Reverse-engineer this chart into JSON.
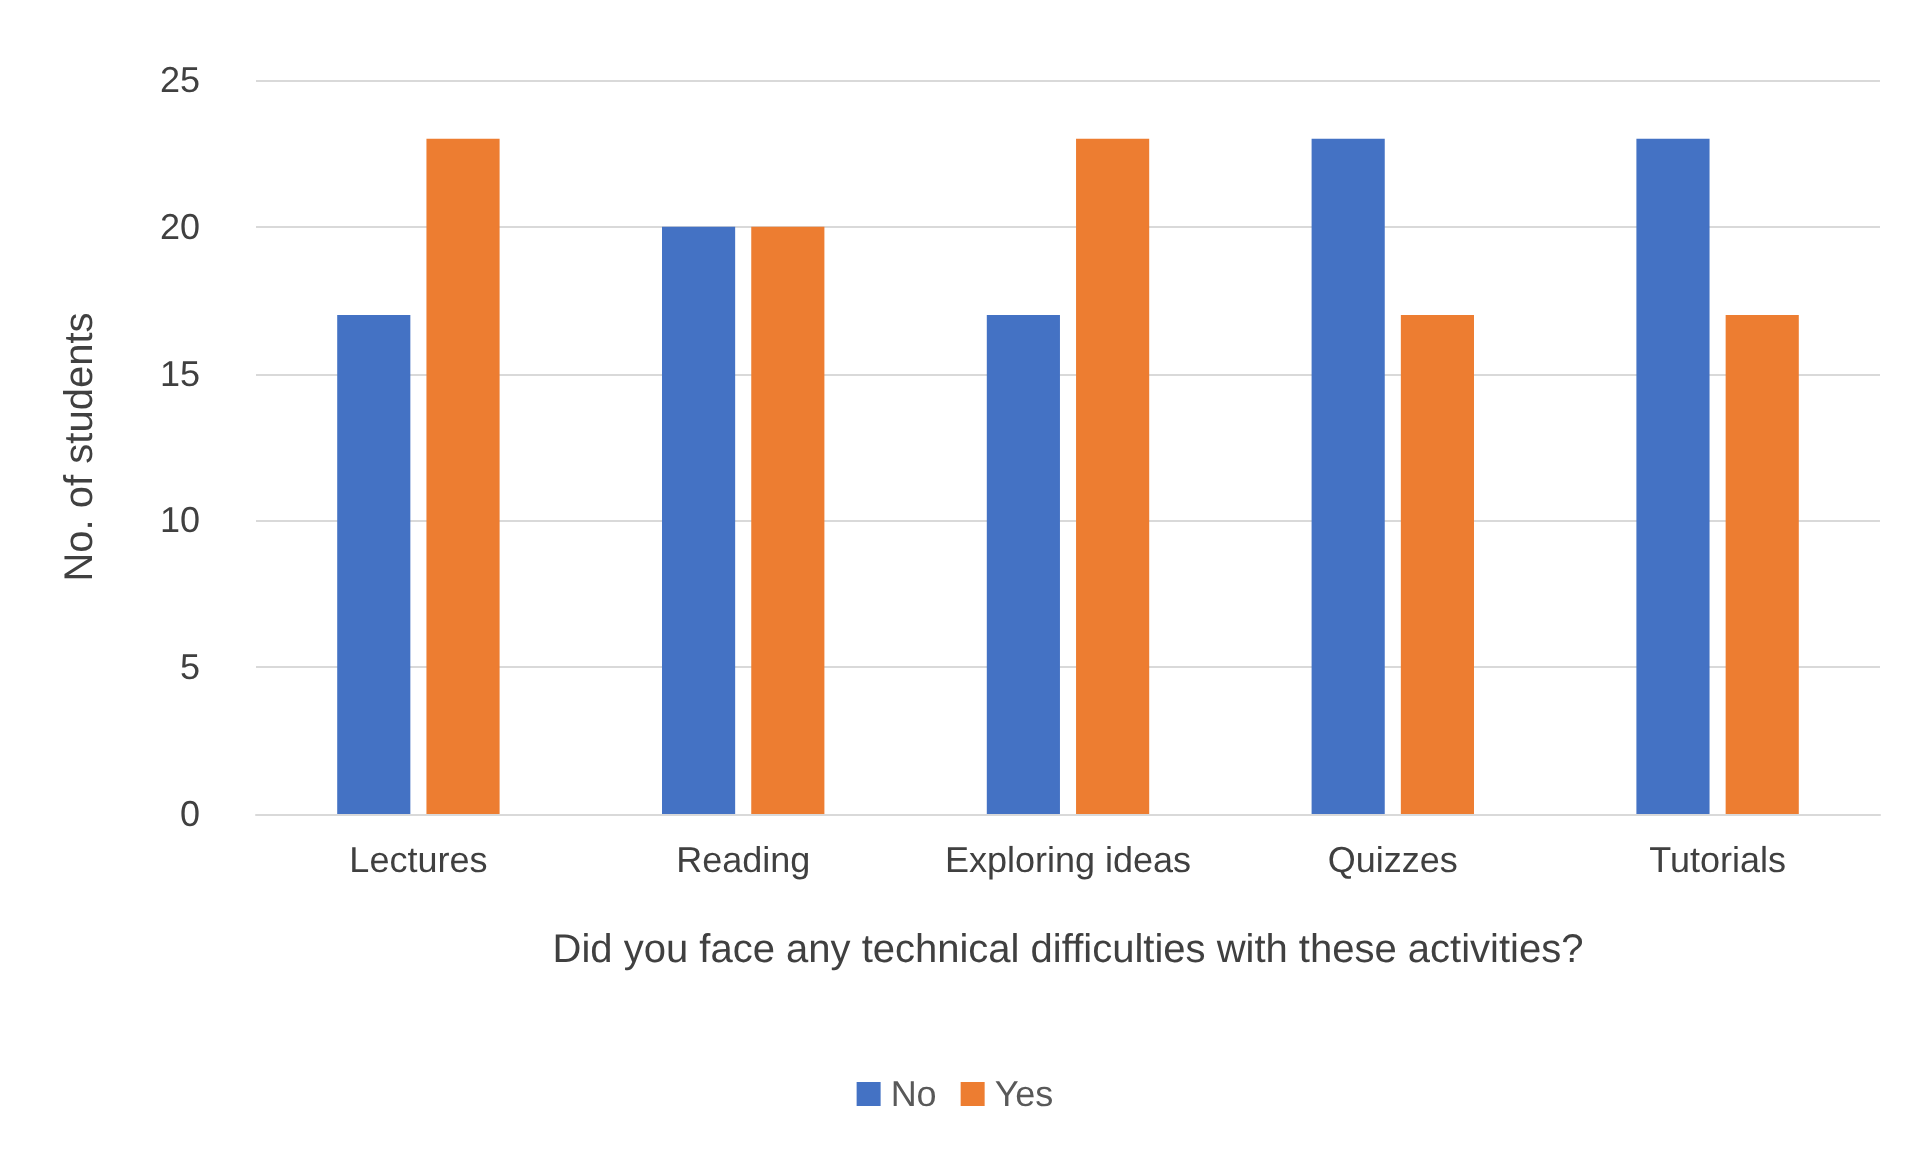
{
  "chart_data": {
    "type": "bar",
    "xlabel": "Did you face any technical difficulties with these activities?",
    "ylabel": "No. of students",
    "categories": [
      "Lectures",
      "Reading",
      "Exploring ideas",
      "Quizzes",
      "Tutorials"
    ],
    "series": [
      {
        "name": "No",
        "color": "#4472c4",
        "values": [
          17,
          20,
          17,
          23,
          23
        ]
      },
      {
        "name": "Yes",
        "color": "#ed7d31",
        "values": [
          23,
          20,
          23,
          17,
          17
        ]
      }
    ],
    "ylim": [
      0,
      25
    ],
    "yticks": [
      0,
      5,
      10,
      15,
      20,
      25
    ],
    "grid": "y",
    "legend": "bottom"
  }
}
